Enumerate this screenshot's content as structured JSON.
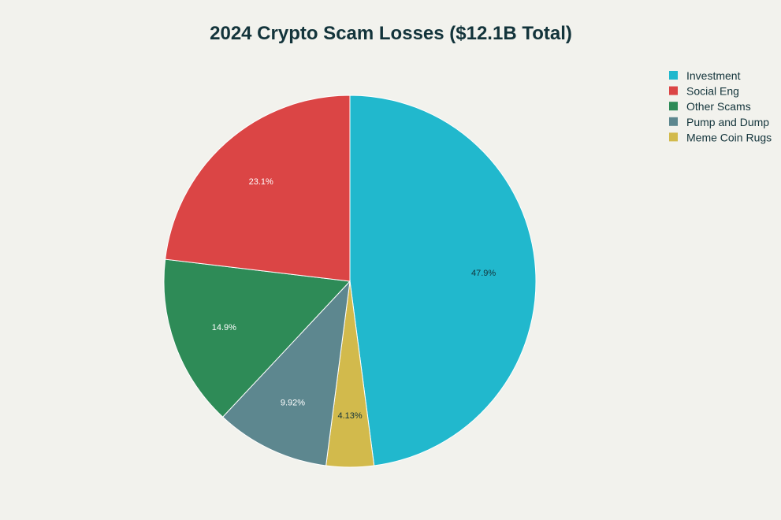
{
  "chart_data": {
    "type": "pie",
    "title": "2024 Crypto Scam Losses ($12.1B Total)",
    "legend_position": "top-right",
    "slices": [
      {
        "name": "Investment",
        "value": 47.9,
        "label": "47.9%",
        "color": "#21b8cd",
        "label_color": "#13343b"
      },
      {
        "name": "Social Eng",
        "value": 23.1,
        "label": "23.1%",
        "color": "#db4545",
        "label_color": "#ffffff"
      },
      {
        "name": "Other Scams",
        "value": 14.9,
        "label": "14.9%",
        "color": "#2e8b57",
        "label_color": "#ffffff"
      },
      {
        "name": "Pump and Dump",
        "value": 9.92,
        "label": "9.92%",
        "color": "#5d878f",
        "label_color": "#ffffff"
      },
      {
        "name": "Meme Coin Rugs",
        "value": 4.13,
        "label": "4.13%",
        "color": "#d2ba4c",
        "label_color": "#13343b"
      }
    ],
    "pie_draw_order": [
      "Investment",
      "Meme Coin Rugs",
      "Pump and Dump",
      "Other Scams",
      "Social Eng"
    ],
    "direction": "clockwise",
    "start": "12 o'clock"
  }
}
